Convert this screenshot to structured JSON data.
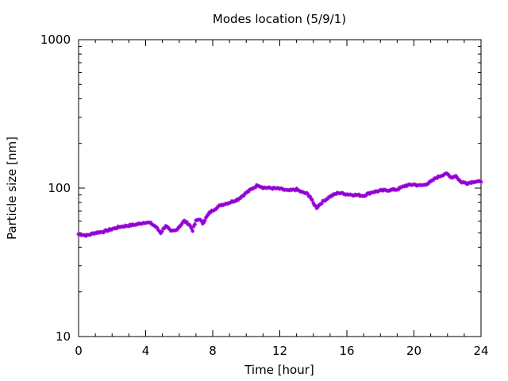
{
  "chart_data": {
    "type": "scatter",
    "title": "Modes location (5/9/1)",
    "xlabel": "Time [hour]",
    "ylabel": "Particle size [nm]",
    "xlim": [
      0,
      24
    ],
    "ylim": [
      10,
      1000
    ],
    "yscale": "log",
    "x_ticks": [
      "0",
      "4",
      "8",
      "12",
      "16",
      "20",
      "24"
    ],
    "y_ticks": [
      "10",
      "100",
      "1000"
    ],
    "grid": false,
    "legend": "none",
    "marker_color": "#9400d3",
    "series": [
      {
        "x": [
          0.0,
          0.5,
          1.0,
          1.5,
          2.0,
          2.5,
          3.0,
          3.5,
          4.0,
          4.3,
          4.6,
          4.9,
          5.2,
          5.5,
          5.8,
          6.0,
          6.3,
          6.6,
          6.8,
          7.0,
          7.2,
          7.4,
          7.6,
          7.8,
          8.0,
          8.5,
          9.0,
          9.5,
          10.0,
          10.4,
          10.7,
          11.0,
          11.5,
          12.0,
          12.5,
          13.0,
          13.3,
          13.6,
          13.8,
          14.0,
          14.2,
          14.5,
          15.0,
          15.5,
          16.0,
          16.5,
          17.0,
          17.5,
          18.0,
          18.5,
          19.0,
          19.5,
          20.0,
          20.3,
          20.6,
          21.0,
          21.3,
          21.6,
          21.9,
          22.2,
          22.5,
          22.8,
          23.2,
          23.6,
          24.0
        ],
        "y": [
          49,
          48,
          50,
          51,
          53,
          55,
          56,
          57,
          59,
          58,
          55,
          50,
          56,
          51,
          52,
          55,
          60,
          57,
          52,
          60,
          62,
          58,
          63,
          68,
          71,
          77,
          80,
          84,
          93,
          100,
          105,
          101,
          100,
          99,
          96,
          98,
          94,
          92,
          88,
          79,
          74,
          80,
          88,
          93,
          91,
          90,
          89,
          94,
          96,
          97,
          98,
          104,
          106,
          104,
          105,
          110,
          117,
          121,
          126,
          118,
          121,
          110,
          108,
          111,
          110
        ]
      }
    ]
  }
}
